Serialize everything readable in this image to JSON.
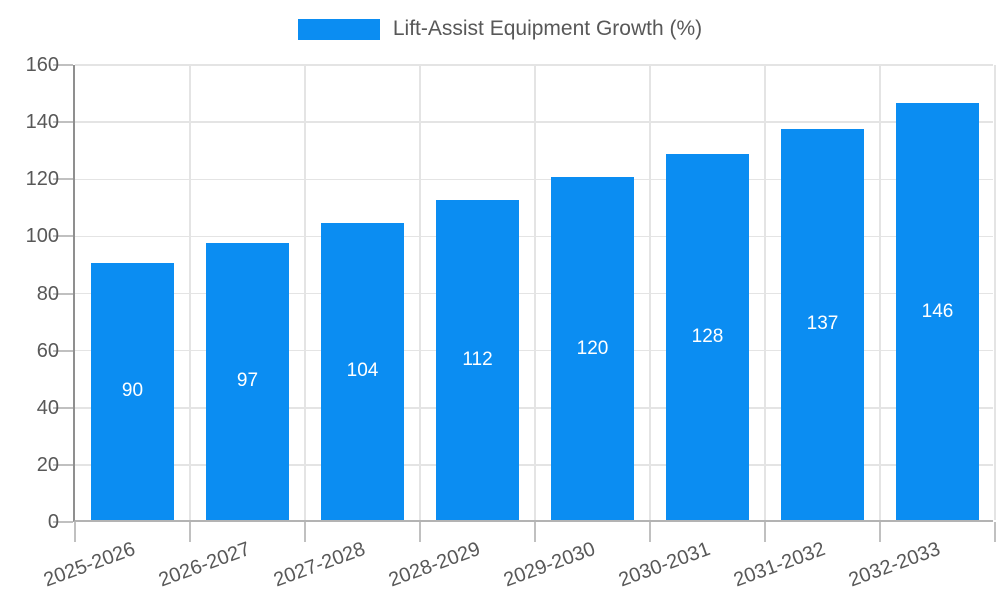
{
  "chart_data": {
    "type": "bar",
    "title": "Lift-Assist Equipment Growth (%)",
    "categories": [
      "2025-2026",
      "2026-2027",
      "2027-2028",
      "2028-2029",
      "2029-2030",
      "2030-2031",
      "2031-2032",
      "2032-2033"
    ],
    "values": [
      90,
      97,
      104,
      112,
      120,
      128,
      137,
      146
    ],
    "xlabel": "",
    "ylabel": "",
    "ylim": [
      0,
      160
    ],
    "yticks": [
      0,
      20,
      40,
      60,
      80,
      100,
      120,
      140,
      160
    ],
    "grid": true,
    "legend_position": "top",
    "bar_value_labels_visible": true,
    "colors": {
      "bar": "#0b8df2",
      "bar_label": "#ffffff",
      "grid_line": "#e4e4e4",
      "tick_line": "#c0c0c0",
      "y_axis_line": "#8f8f8f",
      "x_axis_line": "#b3b3b3",
      "axis_text": "#585858",
      "background": "#ffffff"
    }
  }
}
